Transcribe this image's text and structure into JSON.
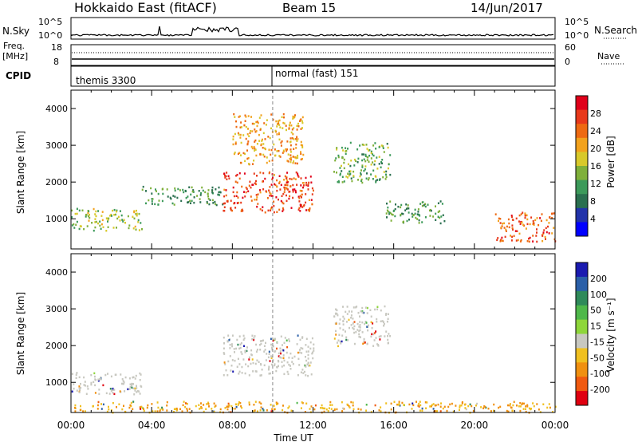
{
  "header": {
    "station": "Hokkaido East (fitACF)",
    "beam": "Beam 15",
    "date": "14/Jun/2017"
  },
  "strip_panels": {
    "nsky_label": "N.Sky",
    "nsearch_label": "N.Search",
    "nsky_ticks": [
      "10^5",
      "10^0"
    ],
    "nsearch_ticks": [
      "10^5",
      "10^0"
    ],
    "freq_label": "Freq.",
    "freq_unit": "[MHz]",
    "freq_ticks": [
      "18",
      "8"
    ],
    "nave_label": "Nave",
    "nave_ticks": [
      "60",
      "0"
    ],
    "cpid_label": "CPID",
    "cpid_modes": [
      "themis 3300",
      "normal (fast) 151"
    ]
  },
  "panels": {
    "ylabel": "Slant Range [km]",
    "xlabel": "Time UT",
    "power_ylabel": "Power [dB]",
    "velocity_ylabel": "Velocity [m s⁻¹]"
  },
  "chart_data": [
    {
      "type": "heatmap",
      "name": "power",
      "x_ticks": [
        "00:00",
        "04:00",
        "08:00",
        "12:00",
        "16:00",
        "20:00",
        "00:00"
      ],
      "xlim_hours": [
        0,
        24
      ],
      "ylabel": "Slant Range [km]",
      "y_ticks": [
        1000,
        2000,
        3000,
        4000
      ],
      "ylim": [
        180,
        4500
      ],
      "colorbar": {
        "label": "Power [dB]",
        "ticks": [
          "4",
          "8",
          "12",
          "16",
          "20",
          "24",
          "28"
        ],
        "range": [
          0,
          30
        ],
        "colors": [
          "#0000ff",
          "#2233aa",
          "#2a6f4f",
          "#3c9a5a",
          "#7fb03a",
          "#d8c92a",
          "#f2a21d",
          "#ee6a12",
          "#e8391b",
          "#e0001a"
        ]
      },
      "features": [
        {
          "time_h": [
            0.0,
            3.5
          ],
          "range_km": [
            700,
            1300
          ],
          "power_db": 14
        },
        {
          "time_h": [
            3.5,
            7.5
          ],
          "range_km": [
            1400,
            1900
          ],
          "power_db": 10
        },
        {
          "time_h": [
            7.5,
            12.0
          ],
          "range_km": [
            1200,
            2300
          ],
          "power_db": 26
        },
        {
          "time_h": [
            8.0,
            11.5
          ],
          "range_km": [
            2500,
            3900
          ],
          "power_db": 20
        },
        {
          "time_h": [
            13.0,
            15.8
          ],
          "range_km": [
            2000,
            3100
          ],
          "power_db": 12
        },
        {
          "time_h": [
            15.5,
            18.5
          ],
          "range_km": [
            900,
            1500
          ],
          "power_db": 10
        },
        {
          "time_h": [
            21.0,
            24.0
          ],
          "range_km": [
            400,
            1200
          ],
          "power_db": 24
        }
      ]
    },
    {
      "type": "heatmap",
      "name": "velocity",
      "x_ticks": [
        "00:00",
        "04:00",
        "08:00",
        "12:00",
        "16:00",
        "20:00",
        "00:00"
      ],
      "xlim_hours": [
        0,
        24
      ],
      "ylabel": "Slant Range [km]",
      "y_ticks": [
        1000,
        2000,
        3000,
        4000
      ],
      "ylim": [
        180,
        4500
      ],
      "colorbar": {
        "label": "Velocity [m s⁻¹]",
        "ticks": [
          "200",
          "100",
          "50",
          "15",
          "-15",
          "-50",
          "-100",
          "-200"
        ],
        "colors": [
          "#1a1ab0",
          "#2a5fa8",
          "#2f8a5a",
          "#4fb84a",
          "#8ed63a",
          "#c8c8c0",
          "#f0c020",
          "#f09010",
          "#f05a10",
          "#e00010"
        ]
      },
      "features": [
        {
          "time_h": [
            0.0,
            3.5
          ],
          "range_km": [
            700,
            1300
          ],
          "velocity_ms": 0
        },
        {
          "time_h": [
            7.5,
            12.0
          ],
          "range_km": [
            1200,
            2300
          ],
          "velocity_ms": 0
        },
        {
          "time_h": [
            13.0,
            15.8
          ],
          "range_km": [
            2000,
            3100
          ],
          "velocity_ms": 0
        },
        {
          "time_h": [
            0.0,
            24.0
          ],
          "range_km": [
            200,
            500
          ],
          "velocity_ms": -60
        }
      ]
    }
  ]
}
